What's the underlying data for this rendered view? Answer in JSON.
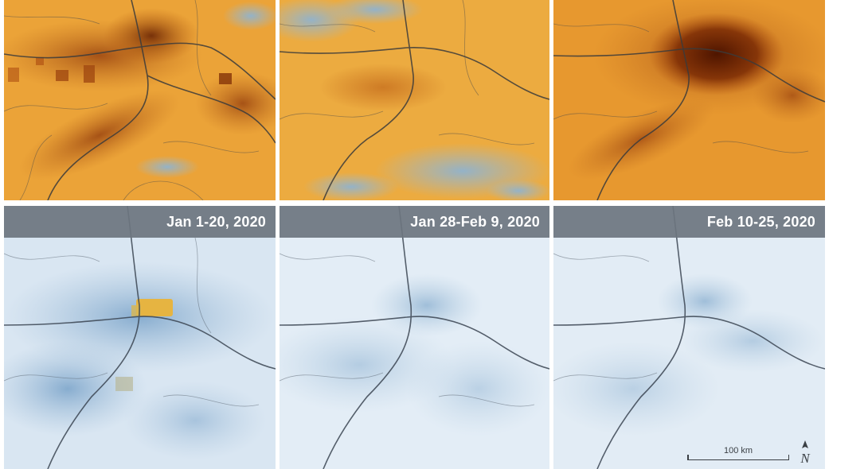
{
  "panels_top": [
    {
      "period": "Jan 1-20, 2020"
    },
    {
      "period": "Jan 28-Feb 9, 2020"
    },
    {
      "period": "Feb 10-25, 2020"
    }
  ],
  "labels": [
    "Jan 1-20, 2020",
    "Jan 28-Feb 9, 2020",
    "Feb 10-25, 2020"
  ],
  "scale_bar": {
    "text": "100 km"
  },
  "north_arrow": {
    "letter": "N",
    "icon": "north-arrow-icon"
  },
  "colors": {
    "high_concentration": "#5a1a00",
    "mid_concentration": "#e8a43a",
    "low_concentration": "#7fa8cc",
    "background_low": "#dce8f3",
    "label_bar": "#6c757f"
  }
}
